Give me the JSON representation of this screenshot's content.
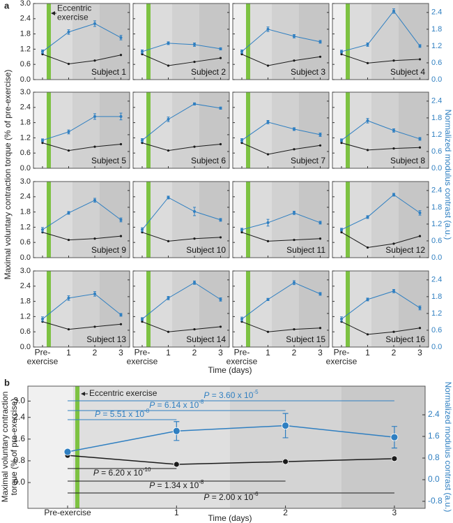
{
  "chart_data": [
    {
      "type": "line",
      "panel_label": "a",
      "ylabel": "Maximal voluntary contraction torque (% of pre-exercise)",
      "y2label": "Normalized modulus contrast (a.u.)",
      "xlabel": "Time (days)",
      "annotation": "Eccentric exercise",
      "categories": [
        "Pre-exercise",
        "1",
        "2",
        "3"
      ],
      "ylim": [
        0,
        3.0
      ],
      "yticks": [
        {
          "value": 0,
          "label": "0.0"
        },
        0.6,
        1.2,
        1.8,
        2.4,
        {
          "value": 3,
          "label": "3.0"
        }
      ],
      "y2lim": [
        0,
        2.72
      ],
      "y2ticks": [
        {
          "value": 0,
          "label": "0.0"
        },
        0.6,
        1.2,
        1.8,
        2.4
      ],
      "subplots": [
        {
          "label": "Subject 1",
          "series": [
            {
              "color": "#1a1a1a",
              "values": [
                1.0,
                0.62,
                0.75,
                0.97
              ]
            },
            {
              "color": "#2f7fc1",
              "axis": "y2",
              "values": [
                1.0,
                1.7,
                2.0,
                1.5
              ],
              "errors": [
                0.06,
                0.08,
                0.1,
                0.08
              ]
            }
          ]
        },
        {
          "label": "Subject 2",
          "series": [
            {
              "color": "#1a1a1a",
              "values": [
                1.0,
                0.55,
                0.7,
                0.85
              ]
            },
            {
              "color": "#2f7fc1",
              "axis": "y2",
              "values": [
                1.0,
                1.3,
                1.25,
                1.1
              ],
              "errors": [
                0.06,
                0.05,
                0.06,
                0.04
              ]
            }
          ]
        },
        {
          "label": "Subject 3",
          "series": [
            {
              "color": "#1a1a1a",
              "values": [
                1.0,
                0.55,
                0.75,
                0.9
              ]
            },
            {
              "color": "#2f7fc1",
              "axis": "y2",
              "values": [
                1.0,
                1.8,
                1.55,
                1.35
              ],
              "errors": [
                0.06,
                0.08,
                0.06,
                0.05
              ]
            }
          ]
        },
        {
          "label": "Subject 4",
          "series": [
            {
              "color": "#1a1a1a",
              "values": [
                1.0,
                0.65,
                0.75,
                0.8
              ]
            },
            {
              "color": "#2f7fc1",
              "axis": "y2",
              "values": [
                1.0,
                1.25,
                2.45,
                1.2
              ],
              "errors": [
                0.05,
                0.06,
                0.08,
                0.05
              ]
            }
          ]
        },
        {
          "label": "Subject 5",
          "series": [
            {
              "color": "#1a1a1a",
              "values": [
                1.0,
                0.7,
                0.85,
                0.95
              ]
            },
            {
              "color": "#2f7fc1",
              "axis": "y2",
              "values": [
                1.0,
                1.3,
                1.85,
                1.85
              ],
              "errors": [
                0.05,
                0.07,
                0.1,
                0.12
              ]
            }
          ]
        },
        {
          "label": "Subject 6",
          "series": [
            {
              "color": "#1a1a1a",
              "values": [
                1.0,
                0.7,
                0.85,
                0.95
              ]
            },
            {
              "color": "#2f7fc1",
              "axis": "y2",
              "values": [
                1.0,
                1.75,
                2.3,
                2.15
              ],
              "errors": [
                0.06,
                0.08,
                0.04,
                0.04
              ]
            }
          ]
        },
        {
          "label": "Subject 7",
          "series": [
            {
              "color": "#1a1a1a",
              "values": [
                1.0,
                0.55,
                0.75,
                0.9
              ]
            },
            {
              "color": "#2f7fc1",
              "axis": "y2",
              "values": [
                1.0,
                1.65,
                1.4,
                1.2
              ],
              "errors": [
                0.06,
                0.06,
                0.05,
                0.06
              ]
            }
          ]
        },
        {
          "label": "Subject 8",
          "series": [
            {
              "color": "#1a1a1a",
              "values": [
                1.0,
                0.72,
                0.78,
                0.82
              ]
            },
            {
              "color": "#2f7fc1",
              "axis": "y2",
              "values": [
                1.0,
                1.7,
                1.35,
                1.05
              ],
              "errors": [
                0.05,
                0.08,
                0.06,
                0.05
              ]
            }
          ]
        },
        {
          "label": "Subject 9",
          "series": [
            {
              "color": "#1a1a1a",
              "values": [
                1.0,
                0.7,
                0.75,
                0.85
              ]
            },
            {
              "color": "#2f7fc1",
              "axis": "y2",
              "values": [
                1.0,
                1.6,
                2.05,
                1.35
              ],
              "errors": [
                0.08,
                0.05,
                0.07,
                0.07
              ]
            }
          ]
        },
        {
          "label": "Subject 10",
          "series": [
            {
              "color": "#1a1a1a",
              "values": [
                1.0,
                0.65,
                0.75,
                0.8
              ]
            },
            {
              "color": "#2f7fc1",
              "axis": "y2",
              "values": [
                1.0,
                2.15,
                1.65,
                1.35
              ],
              "errors": [
                0.07,
                0.05,
                0.15,
                0.05
              ]
            }
          ]
        },
        {
          "label": "Subject 11",
          "series": [
            {
              "color": "#1a1a1a",
              "values": [
                1.0,
                0.65,
                0.7,
                0.75
              ]
            },
            {
              "color": "#2f7fc1",
              "axis": "y2",
              "values": [
                1.0,
                1.25,
                1.6,
                1.25
              ],
              "errors": [
                0.05,
                0.12,
                0.06,
                0.05
              ]
            }
          ]
        },
        {
          "label": "Subject 12",
          "series": [
            {
              "color": "#1a1a1a",
              "values": [
                1.0,
                0.4,
                0.55,
                0.85
              ]
            },
            {
              "color": "#2f7fc1",
              "axis": "y2",
              "values": [
                1.0,
                1.45,
                2.25,
                1.6
              ],
              "errors": [
                0.05,
                0.05,
                0.05,
                0.08
              ]
            }
          ]
        },
        {
          "label": "Subject 13",
          "series": [
            {
              "color": "#1a1a1a",
              "values": [
                1.0,
                0.7,
                0.8,
                0.9
              ]
            },
            {
              "color": "#2f7fc1",
              "axis": "y2",
              "values": [
                1.0,
                1.75,
                1.9,
                1.15
              ],
              "errors": [
                0.08,
                0.08,
                0.08,
                0.05
              ]
            }
          ]
        },
        {
          "label": "Subject 14",
          "series": [
            {
              "color": "#1a1a1a",
              "values": [
                1.0,
                0.6,
                0.7,
                0.8
              ]
            },
            {
              "color": "#2f7fc1",
              "axis": "y2",
              "values": [
                1.0,
                1.75,
                2.3,
                1.7
              ],
              "errors": [
                0.05,
                0.06,
                0.06,
                0.06
              ]
            }
          ]
        },
        {
          "label": "Subject 15",
          "series": [
            {
              "color": "#1a1a1a",
              "values": [
                1.0,
                0.6,
                0.7,
                0.75
              ]
            },
            {
              "color": "#2f7fc1",
              "axis": "y2",
              "values": [
                1.0,
                1.7,
                2.3,
                1.9
              ],
              "errors": [
                0.07,
                0.04,
                0.07,
                0.05
              ]
            }
          ]
        },
        {
          "label": "Subject 16",
          "series": [
            {
              "color": "#1a1a1a",
              "values": [
                1.0,
                0.5,
                0.6,
                0.75
              ]
            },
            {
              "color": "#2f7fc1",
              "axis": "y2",
              "values": [
                1.0,
                1.7,
                2.0,
                1.4
              ],
              "errors": [
                0.08,
                0.05,
                0.06,
                0.07
              ]
            }
          ]
        }
      ]
    },
    {
      "type": "line",
      "panel_label": "b",
      "ylabel": [
        "Maximal voluntary contraction",
        "torque (% of pre-exercise)"
      ],
      "y2label": "Normalized modulus contrast (a.u.)",
      "xlabel": "Time (days)",
      "annotation": "Eccentric exercise",
      "categories": [
        "Pre-exercise",
        "1",
        "2",
        "3"
      ],
      "ylim": [
        -0.95,
        3.55
      ],
      "yticks": [
        {
          "value": 0,
          "label": "0.0"
        },
        0.8,
        1.6,
        2.4,
        {
          "value": 3,
          "label": "3.0"
        }
      ],
      "y2lim": [
        -1.06,
        3.46
      ],
      "y2ticks": [
        -0.8,
        {
          "value": 0,
          "label": "0.0"
        },
        0.8,
        1.6,
        2.4
      ],
      "series": [
        {
          "color": "#1a1a1a",
          "values": [
            1.0,
            0.67,
            0.77,
            0.88
          ],
          "errors": [
            0.03,
            0.05,
            0.05,
            0.04
          ]
        },
        {
          "color": "#2f7fc1",
          "axis": "y2",
          "values": [
            1.03,
            1.8,
            2.0,
            1.57
          ],
          "errors": [
            0.03,
            0.35,
            0.45,
            0.4
          ]
        }
      ],
      "p_values": [
        {
          "text": "P = 3.60 x 10",
          "exponent": "-5",
          "color": "#2f7fc1"
        },
        {
          "text": "P = 6.14 x 10",
          "exponent": "-8",
          "color": "#2f7fc1"
        },
        {
          "text": "P = 5.51 x 10",
          "exponent": "-8",
          "color": "#2f7fc1"
        },
        {
          "text": "P = 6.20 x 10",
          "exponent": "-10",
          "color": "#1a1a1a"
        },
        {
          "text": "P = 1.34 x 10",
          "exponent": "-8",
          "color": "#1a1a1a"
        },
        {
          "text": "P = 2.00 x 10",
          "exponent": "-6",
          "color": "#1a1a1a"
        }
      ]
    }
  ]
}
